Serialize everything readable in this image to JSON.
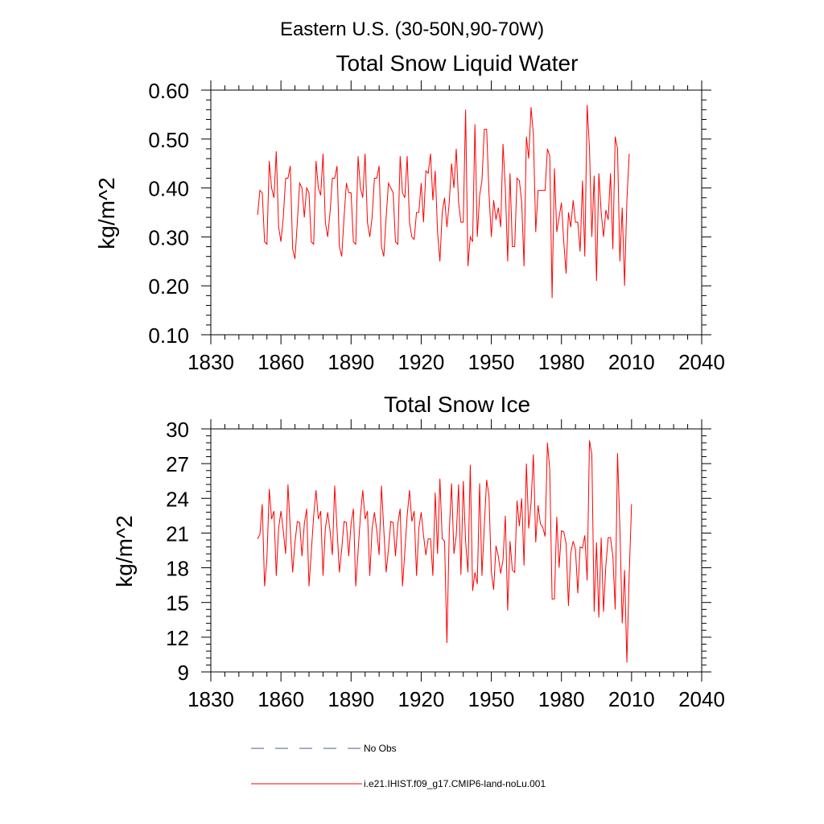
{
  "figure": {
    "suptitle": "Eastern U.S. (30-50N,90-70W)"
  },
  "chart_data": [
    {
      "type": "line",
      "title": "Total Snow Liquid Water",
      "ylabel": "kg/m^2",
      "xlabel": "",
      "xlim": [
        1830,
        2040
      ],
      "ylim": [
        0.1,
        0.6
      ],
      "x_ticks": [
        1830,
        1860,
        1890,
        1920,
        1950,
        1980,
        2010,
        2040
      ],
      "x_tick_labels": [
        "1830",
        "1860",
        "1890",
        "1920",
        "1950",
        "1980",
        "2010",
        "2040"
      ],
      "y_ticks": [
        0.1,
        0.2,
        0.3,
        0.4,
        0.5,
        0.6
      ],
      "y_tick_labels": [
        "0.10",
        "0.20",
        "0.30",
        "0.40",
        "0.50",
        "0.60"
      ],
      "x_start": 1850,
      "series": [
        {
          "name": "i.e21.IHIST.f09_g17.CMIP6-land-noLu.001",
          "color": "#ff0000",
          "values": [
            0.345,
            0.395,
            0.39,
            0.29,
            0.285,
            0.455,
            0.4,
            0.38,
            0.475,
            0.32,
            0.29,
            0.34,
            0.42,
            0.42,
            0.445,
            0.275,
            0.255,
            0.33,
            0.41,
            0.4,
            0.34,
            0.4,
            0.39,
            0.29,
            0.285,
            0.455,
            0.4,
            0.385,
            0.47,
            0.33,
            0.3,
            0.35,
            0.42,
            0.42,
            0.445,
            0.28,
            0.26,
            0.34,
            0.41,
            0.39,
            0.39,
            0.29,
            0.285,
            0.465,
            0.4,
            0.38,
            0.47,
            0.33,
            0.3,
            0.34,
            0.42,
            0.42,
            0.445,
            0.28,
            0.26,
            0.34,
            0.41,
            0.4,
            0.39,
            0.29,
            0.285,
            0.465,
            0.39,
            0.38,
            0.465,
            0.33,
            0.3,
            0.295,
            0.35,
            0.35,
            0.41,
            0.33,
            0.435,
            0.43,
            0.47,
            0.375,
            0.435,
            0.31,
            0.25,
            0.35,
            0.38,
            0.32,
            0.37,
            0.45,
            0.4,
            0.48,
            0.37,
            0.33,
            0.33,
            0.56,
            0.24,
            0.3,
            0.29,
            0.53,
            0.3,
            0.385,
            0.415,
            0.52,
            0.52,
            0.39,
            0.3,
            0.375,
            0.335,
            0.36,
            0.32,
            0.49,
            0.4,
            0.25,
            0.43,
            0.28,
            0.28,
            0.42,
            0.415,
            0.37,
            0.24,
            0.505,
            0.46,
            0.565,
            0.51,
            0.31,
            0.395,
            0.395,
            0.395,
            0.395,
            0.48,
            0.465,
            0.175,
            0.44,
            0.31,
            0.34,
            0.37,
            0.29,
            0.225,
            0.35,
            0.32,
            0.375,
            0.33,
            0.33,
            0.27,
            0.415,
            0.26,
            0.57,
            0.48,
            0.3,
            0.425,
            0.21,
            0.43,
            0.35,
            0.3,
            0.355,
            0.335,
            0.43,
            0.275,
            0.505,
            0.48,
            0.25,
            0.36,
            0.2,
            0.375,
            0.47
          ]
        }
      ]
    },
    {
      "type": "line",
      "title": "Total Snow Ice",
      "ylabel": "kg/m^2",
      "xlabel": "",
      "xlim": [
        1830,
        2040
      ],
      "ylim": [
        9,
        30
      ],
      "x_ticks": [
        1830,
        1860,
        1890,
        1920,
        1950,
        1980,
        2010,
        2040
      ],
      "x_tick_labels": [
        "1830",
        "1860",
        "1890",
        "1920",
        "1950",
        "1980",
        "2010",
        "2040"
      ],
      "y_ticks": [
        9,
        12,
        15,
        18,
        21,
        24,
        27,
        30
      ],
      "y_tick_labels": [
        "9",
        "12",
        "15",
        "18",
        "21",
        "24",
        "27",
        "30"
      ],
      "x_start": 1850,
      "series": [
        {
          "name": "i.e21.IHIST.f09_g17.CMIP6-land-noLu.001",
          "color": "#ff0000",
          "values": [
            20.5,
            20.9,
            23.5,
            16.4,
            18.8,
            24.8,
            22.2,
            22.9,
            17.3,
            21.4,
            22.9,
            21.2,
            19.2,
            25.2,
            21.3,
            17.6,
            20.2,
            22,
            21.9,
            19,
            21.8,
            23.1,
            16.4,
            19.4,
            22.5,
            24.7,
            22.2,
            22.9,
            17.3,
            21.4,
            22.8,
            21.2,
            19.1,
            25.1,
            21.3,
            17.6,
            19.6,
            22,
            21.9,
            19,
            21.8,
            23.1,
            16.4,
            19.4,
            22.5,
            24.7,
            22.2,
            22.9,
            17.3,
            21.4,
            22.8,
            21.2,
            19.1,
            25.1,
            21.3,
            17.6,
            19.6,
            22,
            21.9,
            19,
            21.8,
            23.1,
            16.4,
            19.4,
            22.5,
            24.7,
            22,
            22.9,
            17.3,
            21.4,
            22.8,
            20.8,
            19.1,
            20.5,
            20.5,
            17.3,
            24.5,
            19.2,
            25.7,
            20.5,
            20.3,
            11.5,
            21.1,
            25.3,
            19.2,
            20.8,
            25.2,
            17.4,
            25.5,
            20.3,
            17.6,
            26.9,
            16,
            17.6,
            16.6,
            25.3,
            17.3,
            21.6,
            25.6,
            24.2,
            17.7,
            16.1,
            19.9,
            19,
            17.5,
            18.7,
            22.5,
            14.3,
            20.3,
            17.8,
            17.6,
            23.8,
            21.6,
            24,
            18.2,
            27,
            21.4,
            23.6,
            27.8,
            20.2,
            23.4,
            21.8,
            21.5,
            20.7,
            28.8,
            26.5,
            15.3,
            15.3,
            22.4,
            18,
            21.2,
            21.1,
            20.1,
            14.7,
            19.3,
            20.3,
            19.6,
            15.8,
            19.8,
            19.7,
            20.8,
            16.9,
            29,
            27.8,
            14.2,
            20.2,
            13.7,
            20.6,
            14.2,
            18.2,
            20.6,
            20.6,
            19,
            14.4,
            27.9,
            21.5,
            13.2,
            17.8,
            9.8,
            17.5,
            23.5
          ]
        }
      ]
    }
  ],
  "legend": {
    "items": [
      {
        "label": "No Obs",
        "style": "dashed",
        "color": "#4a5d8a"
      },
      {
        "label": "i.e21.IHIST.f09_g17.CMIP6-land-noLu.001",
        "style": "solid",
        "color": "#ff0000"
      }
    ]
  }
}
